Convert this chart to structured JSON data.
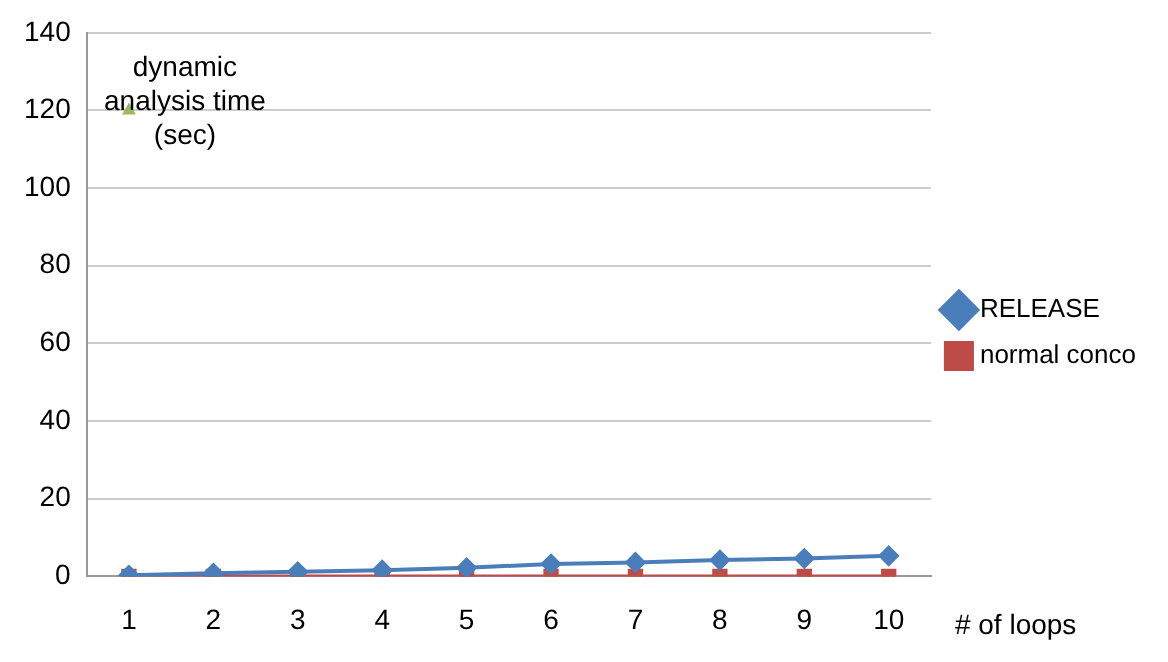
{
  "chart_data": {
    "type": "line",
    "xlabel": "# of loops",
    "categories": [
      "1",
      "2",
      "3",
      "4",
      "5",
      "6",
      "7",
      "8",
      "9",
      "10"
    ],
    "series": [
      {
        "name": "RELEASE",
        "color": "#4a7ebb",
        "marker": "diamond",
        "values": [
          0.3,
          0.8,
          1.2,
          1.6,
          2.2,
          3.2,
          3.6,
          4.2,
          4.6,
          5.3
        ]
      },
      {
        "name": "normal conco",
        "color": "#be4b48",
        "marker": "square",
        "values": [
          0,
          0,
          0,
          0,
          0,
          0,
          0,
          0,
          0,
          0
        ]
      },
      {
        "type": "scatter",
        "color": "#9bbb59",
        "marker": "triangle",
        "values": [
          120,
          null,
          null,
          null,
          null,
          null,
          null,
          null,
          null,
          null
        ]
      }
    ],
    "annotations": [
      {
        "text": "dynamic analysis time (sec)",
        "x": "1",
        "y": 120
      }
    ],
    "ylim": [
      0,
      140
    ],
    "yticks": [
      0,
      20,
      40,
      60,
      80,
      100,
      120,
      140
    ],
    "grid": "y",
    "legend": "right"
  }
}
